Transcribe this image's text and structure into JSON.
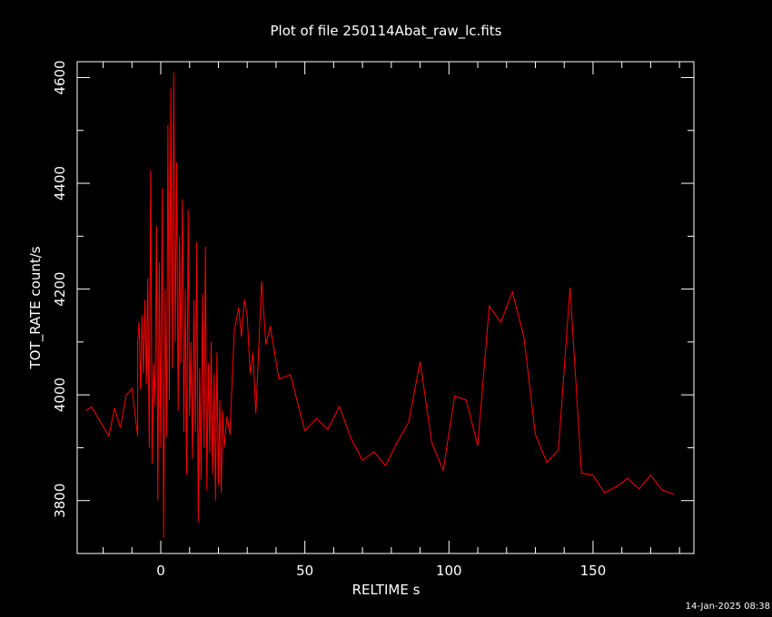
{
  "chart_data": {
    "type": "line",
    "title": "Plot of file 250114Abat_raw_lc.fits",
    "xlabel": "RELTIME  s",
    "ylabel": "TOT_RATE  count/s",
    "xlim": [
      -29,
      185
    ],
    "ylim": [
      3700,
      4630
    ],
    "xticks": [
      0,
      50,
      100,
      150
    ],
    "x_minor_step": 10,
    "yticks": [
      3800,
      4000,
      4200,
      4400,
      4600
    ],
    "y_minor_step": 100,
    "grid": false,
    "legend": "none",
    "footer": "14-Jan-2025 08:38",
    "colors": {
      "background": "#000000",
      "axes": "#ffffff",
      "series": "#ff0000"
    },
    "series": [
      {
        "values": [
          [
            -26,
            3970
          ],
          [
            -24,
            3977
          ],
          [
            -18,
            3922
          ],
          [
            -16,
            3975
          ],
          [
            -14,
            3938
          ],
          [
            -12,
            3999
          ],
          [
            -10,
            4012
          ],
          [
            -8,
            3922
          ],
          [
            -8.0,
            4100
          ],
          [
            -7.5,
            4138
          ],
          [
            -7.0,
            4010
          ],
          [
            -6.5,
            4150
          ],
          [
            -6.0,
            4040
          ],
          [
            -5.5,
            4180
          ],
          [
            -5.0,
            4020
          ],
          [
            -4.5,
            4220
          ],
          [
            -4.0,
            3900
          ],
          [
            -3.5,
            4425
          ],
          [
            -3.0,
            3870
          ],
          [
            -2.5,
            4060
          ],
          [
            -2.0,
            3980
          ],
          [
            -1.5,
            4320
          ],
          [
            -1.0,
            3800
          ],
          [
            -0.5,
            4250
          ],
          [
            0.0,
            3900
          ],
          [
            0.5,
            4390
          ],
          [
            1.0,
            3730
          ],
          [
            1.5,
            4200
          ],
          [
            2.0,
            3920
          ],
          [
            2.5,
            4510
          ],
          [
            3.0,
            3990
          ],
          [
            3.5,
            4580
          ],
          [
            4.0,
            4050
          ],
          [
            4.5,
            4610
          ],
          [
            5.0,
            4100
          ],
          [
            5.5,
            4440
          ],
          [
            6.0,
            3970
          ],
          [
            6.5,
            4300
          ],
          [
            7.0,
            4060
          ],
          [
            7.5,
            4370
          ],
          [
            8.0,
            3930
          ],
          [
            8.5,
            4200
          ],
          [
            9.0,
            3850
          ],
          [
            9.5,
            4350
          ],
          [
            10.0,
            3960
          ],
          [
            10.5,
            4100
          ],
          [
            11.0,
            3880
          ],
          [
            11.5,
            4180
          ],
          [
            12.0,
            3930
          ],
          [
            12.5,
            4290
          ],
          [
            13.0,
            3760
          ],
          [
            13.5,
            4050
          ],
          [
            14.0,
            3840
          ],
          [
            14.5,
            4190
          ],
          [
            15.0,
            3900
          ],
          [
            15.5,
            4280
          ],
          [
            16.0,
            3820
          ],
          [
            16.5,
            4060
          ],
          [
            17.0,
            3890
          ],
          [
            17.5,
            4100
          ],
          [
            18.0,
            3850
          ],
          [
            18.5,
            4040
          ],
          [
            19.0,
            3800
          ],
          [
            19.5,
            4080
          ],
          [
            20.0,
            3830
          ],
          [
            20.5,
            3990
          ],
          [
            21.0,
            3815
          ],
          [
            21.5,
            3970
          ],
          [
            22.0,
            3900
          ],
          [
            23,
            3960
          ],
          [
            24,
            3925
          ],
          [
            25.5,
            4120
          ],
          [
            27,
            4165
          ],
          [
            28,
            4110
          ],
          [
            29,
            4180
          ],
          [
            30,
            4150
          ],
          [
            31,
            4040
          ],
          [
            32,
            4080
          ],
          [
            33,
            3965
          ],
          [
            35,
            4215
          ],
          [
            36.5,
            4095
          ],
          [
            38,
            4130
          ],
          [
            41,
            4030
          ],
          [
            45,
            4038
          ],
          [
            50,
            3932
          ],
          [
            54,
            3955
          ],
          [
            58,
            3935
          ],
          [
            62,
            3978
          ],
          [
            66,
            3918
          ],
          [
            70,
            3876
          ],
          [
            74,
            3892
          ],
          [
            78,
            3866
          ],
          [
            82,
            3910
          ],
          [
            86,
            3948
          ],
          [
            90,
            4063
          ],
          [
            94,
            3910
          ],
          [
            98,
            3857
          ],
          [
            102,
            3998
          ],
          [
            106,
            3990
          ],
          [
            110,
            3904
          ],
          [
            114,
            4168
          ],
          [
            118,
            4137
          ],
          [
            122,
            4195
          ],
          [
            126,
            4110
          ],
          [
            130,
            3925
          ],
          [
            134,
            3872
          ],
          [
            138,
            3896
          ],
          [
            142,
            4203
          ],
          [
            146,
            3852
          ],
          [
            150,
            3848
          ],
          [
            154,
            3815
          ],
          [
            158,
            3826
          ],
          [
            162,
            3842
          ],
          [
            166,
            3822
          ],
          [
            170,
            3848
          ],
          [
            174,
            3820
          ],
          [
            178,
            3812
          ]
        ]
      }
    ]
  }
}
